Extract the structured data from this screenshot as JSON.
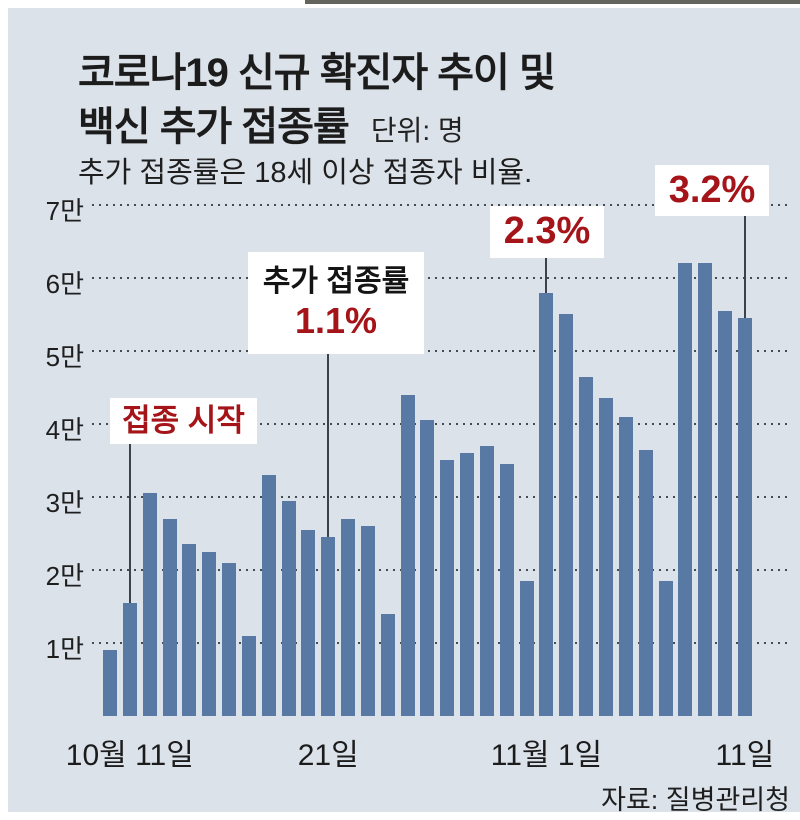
{
  "page": {
    "title_line1": "코로나19 신규 확진자 추이 및",
    "title_line2": "백신 추가 접종률",
    "unit_label": "단위: 명",
    "subtitle": "추가 접종률은 18세 이상 접종자 비율.",
    "source": "자료: 질병관리청"
  },
  "chart_data": {
    "type": "bar",
    "title": "코로나19 신규 확진자 추이 및 백신 추가 접종률",
    "subtitle": "추가 접종률은 18세 이상 접종자 비율.",
    "unit": "명",
    "values_unit": "만 명 (10,000 persons)",
    "ylim": [
      0,
      7
    ],
    "grid": "dotted horizontal",
    "legend": "none",
    "y_ticks": [
      {
        "value": 7,
        "label": "7만"
      },
      {
        "value": 6,
        "label": "6만"
      },
      {
        "value": 5,
        "label": "5만"
      },
      {
        "value": 4,
        "label": "4만"
      },
      {
        "value": 3,
        "label": "3만"
      },
      {
        "value": 2,
        "label": "2만"
      },
      {
        "value": 1,
        "label": "1만"
      }
    ],
    "values": [
      0.9,
      1.55,
      3.05,
      2.7,
      2.35,
      2.25,
      2.1,
      1.1,
      3.3,
      2.95,
      2.55,
      2.45,
      2.7,
      2.6,
      1.4,
      4.4,
      4.05,
      3.5,
      3.6,
      3.7,
      3.45,
      1.85,
      5.8,
      5.5,
      4.65,
      4.35,
      4.1,
      3.65,
      1.85,
      6.2,
      6.2,
      5.55,
      5.45
    ],
    "x_ticks": [
      {
        "index": 1,
        "label": "10월 11일"
      },
      {
        "index": 11,
        "label": "21일"
      },
      {
        "index": 22,
        "label": "11월 1일"
      },
      {
        "index": 32,
        "label": "11일"
      }
    ],
    "annotations": [
      {
        "id": "start",
        "index": 1,
        "label": "접종 시작"
      },
      {
        "id": "rate1",
        "index": 11,
        "label": "추가 접종률",
        "value": "1.1%"
      },
      {
        "id": "rate2",
        "index": 22,
        "value": "2.3%"
      },
      {
        "id": "rate3",
        "index": 32,
        "value": "3.2%"
      }
    ],
    "source": "자료: 질병관리청",
    "bar_color": "#5779a4",
    "accent_red": "#a41419",
    "background": "#dbe2ea"
  }
}
